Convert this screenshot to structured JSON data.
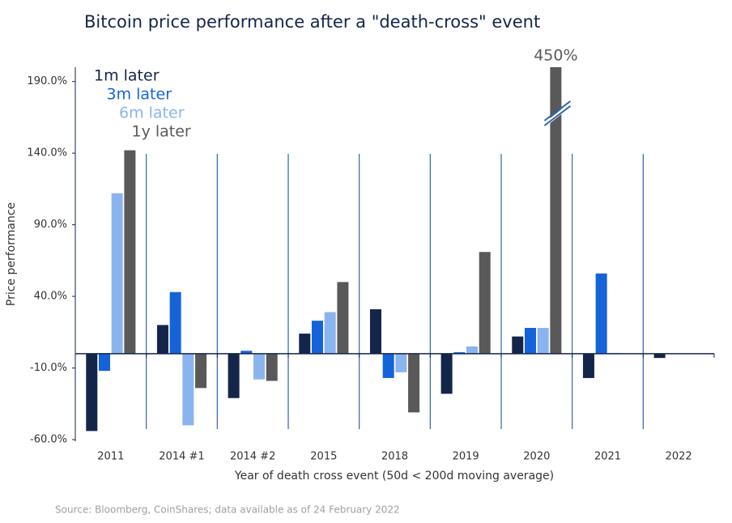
{
  "chart_data": {
    "type": "bar",
    "title": "Bitcoin price performance after a \"death-cross\" event",
    "xlabel": "Year of death cross event (50d < 200d moving average)",
    "ylabel": "Price performance",
    "source": "Source: Bloomberg, CoinShares; data available as of 24 February 2022",
    "categories": [
      "2011",
      "2014 #1",
      "2014 #2",
      "2015",
      "2018",
      "2019",
      "2020",
      "2021",
      "2022"
    ],
    "series": [
      {
        "name": "1m later",
        "color": "#14254a",
        "values": [
          -54,
          20,
          -31,
          14,
          31,
          -28,
          12,
          -17,
          -3
        ]
      },
      {
        "name": "3m later",
        "color": "#1463d8",
        "values": [
          -12,
          43,
          2,
          23,
          -17,
          1,
          18,
          56,
          0
        ]
      },
      {
        "name": "6m later",
        "color": "#8ab4f0",
        "values": [
          112,
          -50,
          -18,
          29,
          -13,
          5,
          18,
          0.5,
          0
        ]
      },
      {
        "name": "1y later",
        "color": "#595959",
        "values": [
          142,
          -24,
          -19,
          50,
          -41,
          71,
          450,
          0,
          0
        ],
        "value_labels": [
          null,
          null,
          null,
          null,
          null,
          null,
          "450%",
          null,
          null
        ]
      }
    ],
    "ylim": [
      -60,
      200
    ],
    "yticks": [
      {
        "value": -60,
        "label": "-60.0%"
      },
      {
        "value": -10,
        "label": "-10.0%"
      },
      {
        "value": 40,
        "label": "40.0%"
      },
      {
        "value": 90,
        "label": "90.0%"
      },
      {
        "value": 140,
        "label": "140.0%"
      },
      {
        "value": 190,
        "label": "190.0%"
      }
    ]
  }
}
